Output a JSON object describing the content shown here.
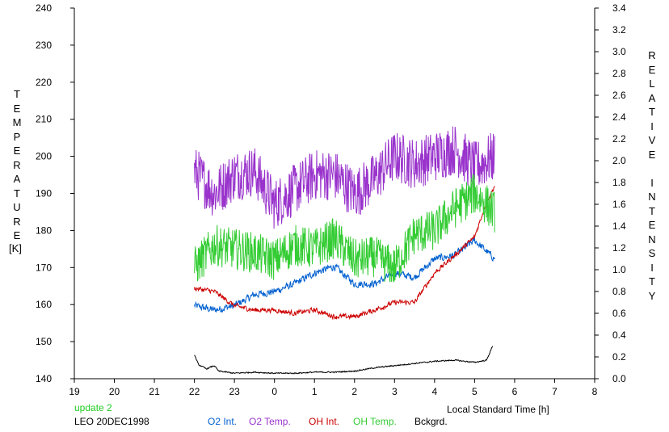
{
  "chart_data": {
    "type": "line",
    "xlabel": "Local Standard Time [h]",
    "ylabel_left": "TEMPERATURE",
    "ylabel_left_units": "[K]",
    "ylabel_right": "RELATIVE INTENSITY",
    "xlim": [
      19,
      32
    ],
    "x_tick_labels": [
      "19",
      "20",
      "21",
      "22",
      "23",
      "0",
      "1",
      "2",
      "3",
      "4",
      "5",
      "6",
      "7",
      "8"
    ],
    "ylim_left": [
      140,
      240
    ],
    "y_left_ticks": [
      "140",
      "150",
      "160",
      "170",
      "180",
      "190",
      "200",
      "210",
      "220",
      "230",
      "240"
    ],
    "ylim_right": [
      0.0,
      3.4
    ],
    "y_right_ticks": [
      "0.0",
      "0.2",
      "0.4",
      "0.6",
      "0.8",
      "1.0",
      "1.2",
      "1.4",
      "1.6",
      "1.8",
      "2.0",
      "2.2",
      "2.4",
      "2.6",
      "2.8",
      "3.0",
      "3.2",
      "3.4"
    ],
    "grid": false,
    "series": [
      {
        "name": "O2 Int.",
        "color": "#0060d0",
        "axis": "right",
        "x": [
          22.0,
          22.5,
          23.0,
          23.5,
          24.0,
          24.5,
          25.0,
          25.5,
          26.0,
          26.5,
          27.0,
          27.5,
          28.0,
          28.5,
          29.0,
          29.5
        ],
        "y": [
          0.67,
          0.63,
          0.67,
          0.77,
          0.8,
          0.87,
          0.97,
          1.03,
          0.87,
          0.87,
          0.97,
          0.93,
          1.1,
          1.13,
          1.27,
          1.1
        ],
        "noise": 0.03
      },
      {
        "name": "O2 Temp.",
        "color": "#9933cc",
        "axis": "left",
        "x": [
          22.0,
          22.5,
          23.0,
          23.5,
          24.0,
          24.5,
          25.0,
          25.5,
          26.0,
          26.5,
          27.0,
          27.5,
          28.0,
          28.5,
          29.0,
          29.5
        ],
        "y": [
          196,
          190,
          195,
          196,
          187,
          191,
          195,
          195,
          190,
          194,
          200,
          198,
          200,
          202,
          197,
          200
        ],
        "noise": 5
      },
      {
        "name": "OH Int.",
        "color": "#cc0000",
        "axis": "right",
        "x": [
          22.0,
          22.5,
          23.0,
          23.5,
          24.0,
          24.5,
          25.0,
          25.5,
          26.0,
          26.5,
          27.0,
          27.5,
          28.0,
          28.5,
          29.0,
          29.25,
          29.5
        ],
        "y": [
          0.83,
          0.8,
          0.67,
          0.63,
          0.63,
          0.6,
          0.63,
          0.57,
          0.57,
          0.63,
          0.7,
          0.7,
          0.97,
          1.13,
          1.3,
          1.57,
          1.77
        ],
        "noise": 0.02
      },
      {
        "name": "OH Temp.",
        "color": "#33cc33",
        "axis": "left",
        "x": [
          22.0,
          22.5,
          23.0,
          23.5,
          24.0,
          24.5,
          25.0,
          25.5,
          26.0,
          26.5,
          27.0,
          27.5,
          28.0,
          28.5,
          29.0,
          29.5
        ],
        "y": [
          170,
          176,
          175,
          174,
          172,
          176,
          175,
          178,
          172,
          173,
          170,
          179,
          180,
          186,
          190,
          185
        ],
        "noise": 4
      },
      {
        "name": "Bckgrd.",
        "color": "#000000",
        "axis": "right",
        "x": [
          22.0,
          22.1,
          22.3,
          22.5,
          22.6,
          22.8,
          23.0,
          23.5,
          24.0,
          24.5,
          25.0,
          25.5,
          26.0,
          26.5,
          27.0,
          27.5,
          28.0,
          28.5,
          29.0,
          29.3,
          29.45
        ],
        "y": [
          0.22,
          0.13,
          0.09,
          0.12,
          0.07,
          0.06,
          0.05,
          0.06,
          0.05,
          0.05,
          0.06,
          0.06,
          0.07,
          0.1,
          0.12,
          0.14,
          0.16,
          0.17,
          0.15,
          0.17,
          0.3
        ],
        "noise": 0.005
      }
    ]
  },
  "footer": {
    "update_label": "update 2",
    "station_label": "LEO 20DEC1998"
  },
  "colors": {
    "update": "#22cc22"
  }
}
